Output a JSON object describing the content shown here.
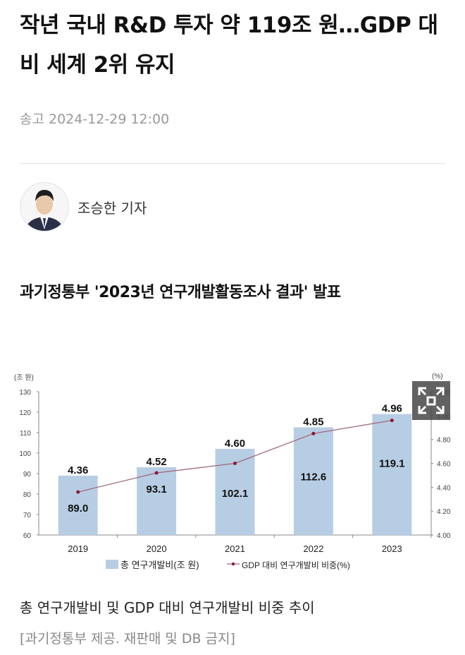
{
  "article": {
    "title": "작년 국내 R&D 투자 약 119조 원…GDP 대비 세계 2위 유지",
    "date": "송고 2024-12-29 12:00",
    "reporter": "조승한 기자",
    "subheading": "과기정통부 '2023년 연구개발활동조사 결과' 발표",
    "caption": "총 연구개발비 및 GDP 대비 연구개발비 비중 추이",
    "credit": "[과기정통부 제공. 재판매 및 DB 금지]"
  },
  "chart_data": {
    "type": "bar",
    "categories": [
      "2019",
      "2020",
      "2021",
      "2022",
      "2023"
    ],
    "series": [
      {
        "name": "총 연구개발비(조 원)",
        "type": "bar",
        "axis": "left",
        "values": [
          89.0,
          93.1,
          102.1,
          112.6,
          119.1
        ],
        "color": "#b7cde3"
      },
      {
        "name": "GDP 대비 연구개발비 비중(%)",
        "type": "line",
        "axis": "right",
        "values": [
          4.36,
          4.52,
          4.6,
          4.85,
          4.96
        ],
        "color": "#a06a7a"
      }
    ],
    "ylabel_left": "(조 원)",
    "ylabel_right": "(%)",
    "ylim_left": [
      60,
      130
    ],
    "yticks_left": [
      "60",
      "70",
      "80",
      "90",
      "100",
      "110",
      "120",
      "130"
    ],
    "ylim_right": [
      4.0,
      5.2
    ],
    "yticks_right": [
      "4.00",
      "4.20",
      "4.40",
      "4.60",
      "4.80",
      "5.00",
      "5.20"
    ],
    "grid": false,
    "legend": "bottom"
  },
  "icons": {
    "expand": "expand-icon"
  }
}
